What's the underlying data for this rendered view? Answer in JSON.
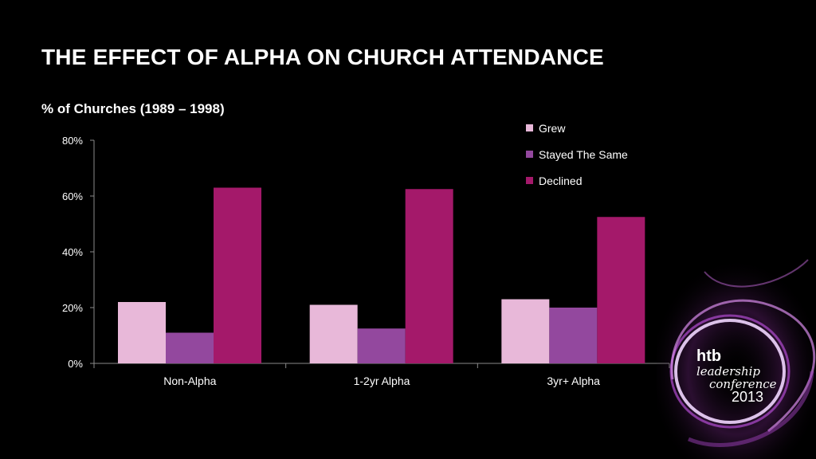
{
  "slide": {
    "title": "THE EFFECT OF ALPHA ON CHURCH ATTENDANCE"
  },
  "logo": {
    "line1": "htb",
    "line2": "leadership",
    "line3": "conference",
    "line4": "2013"
  },
  "colors": {
    "grew": "#e8b8d9",
    "stayed": "#93489e",
    "declined": "#a4196a",
    "axis": "#8a8a8a"
  },
  "chart_data": {
    "type": "bar",
    "title": "% of Churches (1989 – 1998)",
    "categories": [
      "Non-Alpha",
      "1-2yr Alpha",
      "3yr+ Alpha"
    ],
    "series": [
      {
        "name": "Grew",
        "values": [
          22,
          21,
          23
        ]
      },
      {
        "name": "Stayed The Same",
        "values": [
          11,
          12.5,
          20
        ]
      },
      {
        "name": "Declined",
        "values": [
          63,
          62.5,
          52.5
        ]
      }
    ],
    "yticks": [
      "0%",
      "20%",
      "40%",
      "60%",
      "80%"
    ],
    "ylim": [
      0,
      80
    ],
    "xlabel": "",
    "ylabel": "",
    "grid": false,
    "legend": "top-right"
  }
}
